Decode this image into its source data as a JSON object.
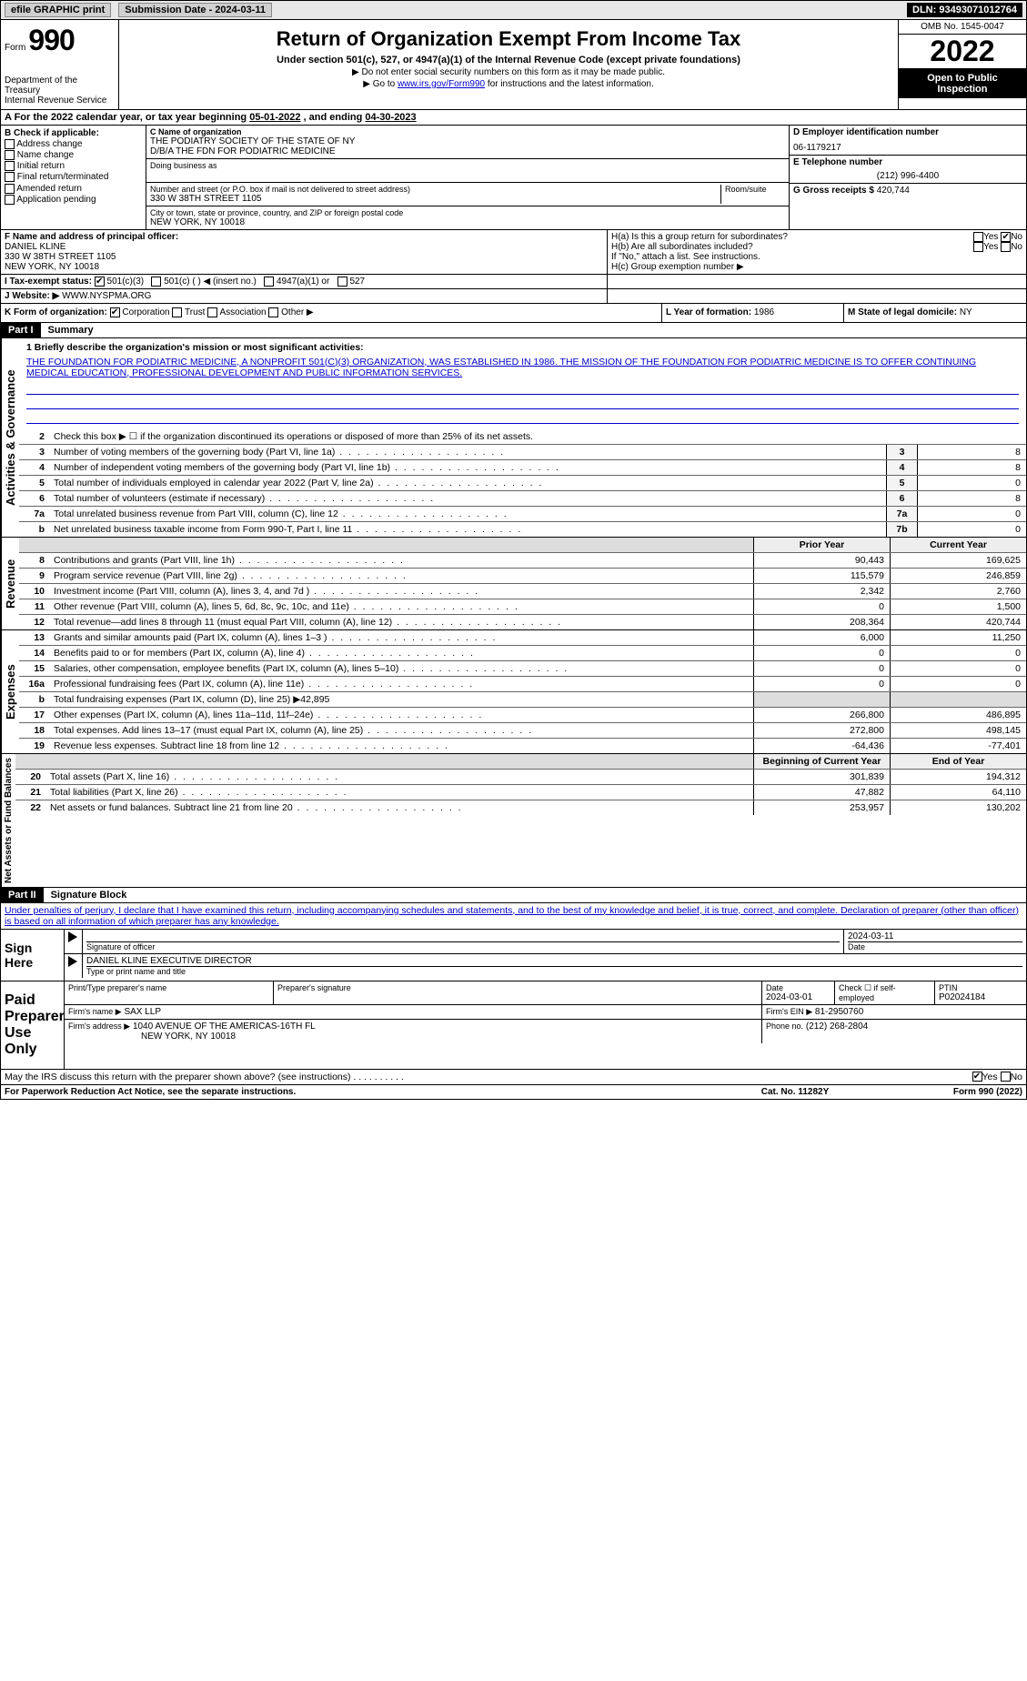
{
  "top": {
    "efile": "efile GRAPHIC print",
    "sub_label": "Submission Date - 2024-03-11",
    "dln": "DLN: 93493071012764"
  },
  "header": {
    "form": "Form",
    "num": "990",
    "title": "Return of Organization Exempt From Income Tax",
    "sub1": "Under section 501(c), 527, or 4947(a)(1) of the Internal Revenue Code (except private foundations)",
    "sub2": "▶ Do not enter social security numbers on this form as it may be made public.",
    "sub3_pre": "▶ Go to ",
    "sub3_link": "www.irs.gov/Form990",
    "sub3_post": " for instructions and the latest information.",
    "dept": "Department of the Treasury",
    "irs": "Internal Revenue Service",
    "omb": "OMB No. 1545-0047",
    "year": "2022",
    "open": "Open to Public Inspection"
  },
  "fiscal": {
    "a": "A For the 2022 calendar year, or tax year beginning ",
    "begin": "05-01-2022",
    "mid": " , and ending ",
    "end": "04-30-2023"
  },
  "b": {
    "title": "B Check if applicable:",
    "addr": "Address change",
    "name": "Name change",
    "init": "Initial return",
    "final": "Final return/terminated",
    "amend": "Amended return",
    "app": "Application pending"
  },
  "c": {
    "label": "C Name of organization",
    "org1": "THE PODIATRY SOCIETY OF THE STATE OF NY",
    "org2": "D/B/A THE FDN FOR PODIATRIC MEDICINE",
    "dba": "Doing business as",
    "street_label": "Number and street (or P.O. box if mail is not delivered to street address)",
    "room": "Room/suite",
    "street": "330 W 38TH STREET 1105",
    "city_label": "City or town, state or province, country, and ZIP or foreign postal code",
    "city": "NEW YORK, NY  10018"
  },
  "d": {
    "label": "D Employer identification number",
    "ein": "06-1179217"
  },
  "e": {
    "label": "E Telephone number",
    "phone": "(212) 996-4400"
  },
  "g": {
    "label": "G Gross receipts $",
    "amount": "420,744"
  },
  "f": {
    "label": "F Name and address of principal officer:",
    "name": "DANIEL KLINE",
    "addr1": "330 W 38TH STREET 1105",
    "addr2": "NEW YORK, NY  10018"
  },
  "h": {
    "a": "H(a)  Is this a group return for subordinates?",
    "b": "H(b)  Are all subordinates included?",
    "bnote": "If \"No,\" attach a list. See instructions.",
    "c": "H(c)  Group exemption number ▶"
  },
  "i": {
    "label": "I   Tax-exempt status:",
    "c3": "501(c)(3)",
    "c": "501(c) (   ) ◀ (insert no.)",
    "a1": "4947(a)(1) or",
    "s527": "527"
  },
  "j": {
    "label": "J   Website: ▶",
    "url": "WWW.NYSPMA.ORG"
  },
  "k": {
    "label": "K Form of organization:",
    "corp": "Corporation",
    "trust": "Trust",
    "assoc": "Association",
    "other": "Other ▶"
  },
  "l": {
    "label": "L Year of formation:",
    "val": "1986"
  },
  "m": {
    "label": "M State of legal domicile:",
    "val": "NY"
  },
  "part1": {
    "title": "Part I",
    "name": "Summary",
    "line1_label": "1  Briefly describe the organization's mission or most significant activities:",
    "mission": "THE FOUNDATION FOR PODIATRIC MEDICINE, A NONPROFIT 501(C)(3) ORGANIZATION, WAS ESTABLISHED IN 1986. THE MISSION OF THE FOUNDATION FOR PODIATRIC MEDICINE IS TO OFFER CONTINUING MEDICAL EDUCATION, PROFESSIONAL DEVELOPMENT AND PUBLIC INFORMATION SERVICES.",
    "line2": "Check this box ▶ ☐ if the organization discontinued its operations or disposed of more than 25% of its net assets.",
    "lines_gov": [
      {
        "n": "3",
        "t": "Number of voting members of the governing body (Part VI, line 1a)",
        "box": "3",
        "v": "8"
      },
      {
        "n": "4",
        "t": "Number of independent voting members of the governing body (Part VI, line 1b)",
        "box": "4",
        "v": "8"
      },
      {
        "n": "5",
        "t": "Total number of individuals employed in calendar year 2022 (Part V, line 2a)",
        "box": "5",
        "v": "0"
      },
      {
        "n": "6",
        "t": "Total number of volunteers (estimate if necessary)",
        "box": "6",
        "v": "8"
      },
      {
        "n": "7a",
        "t": "Total unrelated business revenue from Part VIII, column (C), line 12",
        "box": "7a",
        "v": "0"
      },
      {
        "n": "b",
        "t": "Net unrelated business taxable income from Form 990-T, Part I, line 11",
        "box": "7b",
        "v": "0"
      }
    ],
    "prior": "Prior Year",
    "current": "Current Year",
    "revenue": [
      {
        "n": "8",
        "t": "Contributions and grants (Part VIII, line 1h)",
        "p": "90,443",
        "c": "169,625"
      },
      {
        "n": "9",
        "t": "Program service revenue (Part VIII, line 2g)",
        "p": "115,579",
        "c": "246,859"
      },
      {
        "n": "10",
        "t": "Investment income (Part VIII, column (A), lines 3, 4, and 7d )",
        "p": "2,342",
        "c": "2,760"
      },
      {
        "n": "11",
        "t": "Other revenue (Part VIII, column (A), lines 5, 6d, 8c, 9c, 10c, and 11e)",
        "p": "0",
        "c": "1,500"
      },
      {
        "n": "12",
        "t": "Total revenue—add lines 8 through 11 (must equal Part VIII, column (A), line 12)",
        "p": "208,364",
        "c": "420,744"
      }
    ],
    "expenses": [
      {
        "n": "13",
        "t": "Grants and similar amounts paid (Part IX, column (A), lines 1–3 )",
        "p": "6,000",
        "c": "11,250"
      },
      {
        "n": "14",
        "t": "Benefits paid to or for members (Part IX, column (A), line 4)",
        "p": "0",
        "c": "0"
      },
      {
        "n": "15",
        "t": "Salaries, other compensation, employee benefits (Part IX, column (A), lines 5–10)",
        "p": "0",
        "c": "0"
      },
      {
        "n": "16a",
        "t": "Professional fundraising fees (Part IX, column (A), line 11e)",
        "p": "0",
        "c": "0"
      },
      {
        "n": "b",
        "t": "Total fundraising expenses (Part IX, column (D), line 25) ▶42,895",
        "p": "",
        "c": "",
        "shaded": true
      },
      {
        "n": "17",
        "t": "Other expenses (Part IX, column (A), lines 11a–11d, 11f–24e)",
        "p": "266,800",
        "c": "486,895"
      },
      {
        "n": "18",
        "t": "Total expenses. Add lines 13–17 (must equal Part IX, column (A), line 25)",
        "p": "272,800",
        "c": "498,145"
      },
      {
        "n": "19",
        "t": "Revenue less expenses. Subtract line 18 from line 12",
        "p": "-64,436",
        "c": "-77,401"
      }
    ],
    "begin": "Beginning of Current Year",
    "end": "End of Year",
    "netassets": [
      {
        "n": "20",
        "t": "Total assets (Part X, line 16)",
        "p": "301,839",
        "c": "194,312"
      },
      {
        "n": "21",
        "t": "Total liabilities (Part X, line 26)",
        "p": "47,882",
        "c": "64,110"
      },
      {
        "n": "22",
        "t": "Net assets or fund balances. Subtract line 21 from line 20",
        "p": "253,957",
        "c": "130,202"
      }
    ]
  },
  "part2": {
    "title": "Part II",
    "name": "Signature Block",
    "decl": "Under penalties of perjury, I declare that I have examined this return, including accompanying schedules and statements, and to the best of my knowledge and belief, it is true, correct, and complete. Declaration of preparer (other than officer) is based on all information of which preparer has any knowledge."
  },
  "sign": {
    "here": "Sign Here",
    "sig_officer": "Signature of officer",
    "date": "Date",
    "sig_date": "2024-03-11",
    "name": "DANIEL KLINE  EXECUTIVE DIRECTOR",
    "type_name": "Type or print name and title"
  },
  "paid": {
    "label": "Paid Preparer Use Only",
    "print": "Print/Type preparer's name",
    "psig": "Preparer's signature",
    "pdate_label": "Date",
    "pdate": "2024-03-01",
    "check": "Check ☐ if self-employed",
    "ptin_label": "PTIN",
    "ptin": "P02024184",
    "firm_label": "Firm's name   ▶",
    "firm": "SAX LLP",
    "ein_label": "Firm's EIN ▶",
    "ein": "81-2950760",
    "addr_label": "Firm's address ▶",
    "addr1": "1040 AVENUE OF THE AMERICAS-16TH FL",
    "addr2": "NEW YORK, NY  10018",
    "phone_label": "Phone no.",
    "phone": "(212) 268-2804"
  },
  "discuss": "May the IRS discuss this return with the preparer shown above? (see instructions)",
  "footer": {
    "pra": "For Paperwork Reduction Act Notice, see the separate instructions.",
    "cat": "Cat. No. 11282Y",
    "form": "Form 990 (2022)"
  },
  "labels": {
    "gov": "Activities & Governance",
    "rev": "Revenue",
    "exp": "Expenses",
    "net": "Net Assets or Fund Balances",
    "yes": "Yes",
    "no": "No"
  }
}
